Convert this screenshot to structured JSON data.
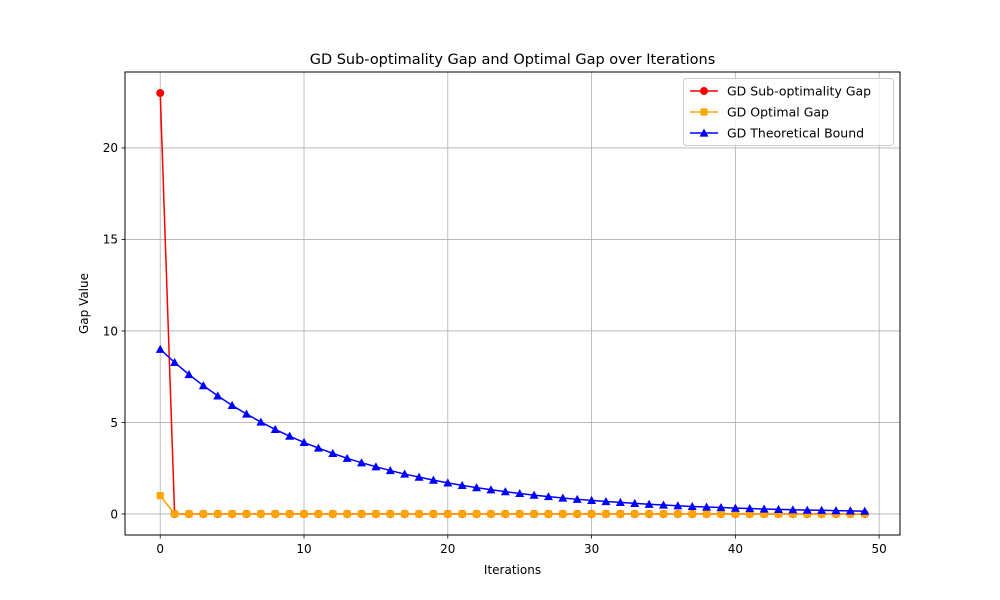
{
  "chart_data": {
    "type": "line",
    "title": "GD Sub-optimality Gap and Optimal Gap over Iterations",
    "xlabel": "Iterations",
    "ylabel": "Gap Value",
    "xlim": [
      -2.45,
      51.45
    ],
    "ylim": [
      -1.15,
      24.15
    ],
    "xticks": [
      0,
      10,
      20,
      30,
      40,
      50
    ],
    "yticks": [
      0,
      5,
      10,
      15,
      20
    ],
    "grid": true,
    "legend_position": "upper right",
    "x": [
      0,
      1,
      2,
      3,
      4,
      5,
      6,
      7,
      8,
      9,
      10,
      11,
      12,
      13,
      14,
      15,
      16,
      17,
      18,
      19,
      20,
      21,
      22,
      23,
      24,
      25,
      26,
      27,
      28,
      29,
      30,
      31,
      32,
      33,
      34,
      35,
      36,
      37,
      38,
      39,
      40,
      41,
      42,
      43,
      44,
      45,
      46,
      47,
      48,
      49
    ],
    "series": [
      {
        "name": "GD Sub-optimality Gap",
        "color": "#ff0000",
        "marker": "circle",
        "values": [
          23.0,
          0,
          0,
          0,
          0,
          0,
          0,
          0,
          0,
          0,
          0,
          0,
          0,
          0,
          0,
          0,
          0,
          0,
          0,
          0,
          0,
          0,
          0,
          0,
          0,
          0,
          0,
          0,
          0,
          0,
          0,
          0,
          0,
          0,
          0,
          0,
          0,
          0,
          0,
          0,
          0,
          0,
          0,
          0,
          0,
          0,
          0,
          0,
          0,
          0
        ]
      },
      {
        "name": "GD Optimal Gap",
        "color": "#ffa500",
        "marker": "square",
        "values": [
          1.0,
          0,
          0,
          0,
          0,
          0,
          0,
          0,
          0,
          0,
          0,
          0,
          0,
          0,
          0,
          0,
          0,
          0,
          0,
          0,
          0,
          0,
          0,
          0,
          0,
          0,
          0,
          0,
          0,
          0,
          0,
          0,
          0,
          0,
          0,
          0,
          0,
          0,
          0,
          0,
          0,
          0,
          0,
          0,
          0,
          0,
          0,
          0,
          0,
          0
        ]
      },
      {
        "name": "GD Theoretical Bound",
        "color": "#0000ff",
        "marker": "triangle",
        "values": [
          9.0,
          8.28,
          7.62,
          7.01,
          6.45,
          5.93,
          5.46,
          5.02,
          4.62,
          4.25,
          3.91,
          3.6,
          3.31,
          3.04,
          2.8,
          2.58,
          2.37,
          2.18,
          2.01,
          1.85,
          1.7,
          1.56,
          1.44,
          1.32,
          1.22,
          1.12,
          1.03,
          0.95,
          0.87,
          0.8,
          0.74,
          0.68,
          0.63,
          0.58,
          0.53,
          0.49,
          0.45,
          0.41,
          0.38,
          0.35,
          0.32,
          0.3,
          0.27,
          0.25,
          0.23,
          0.21,
          0.2,
          0.18,
          0.17,
          0.15
        ]
      }
    ]
  }
}
